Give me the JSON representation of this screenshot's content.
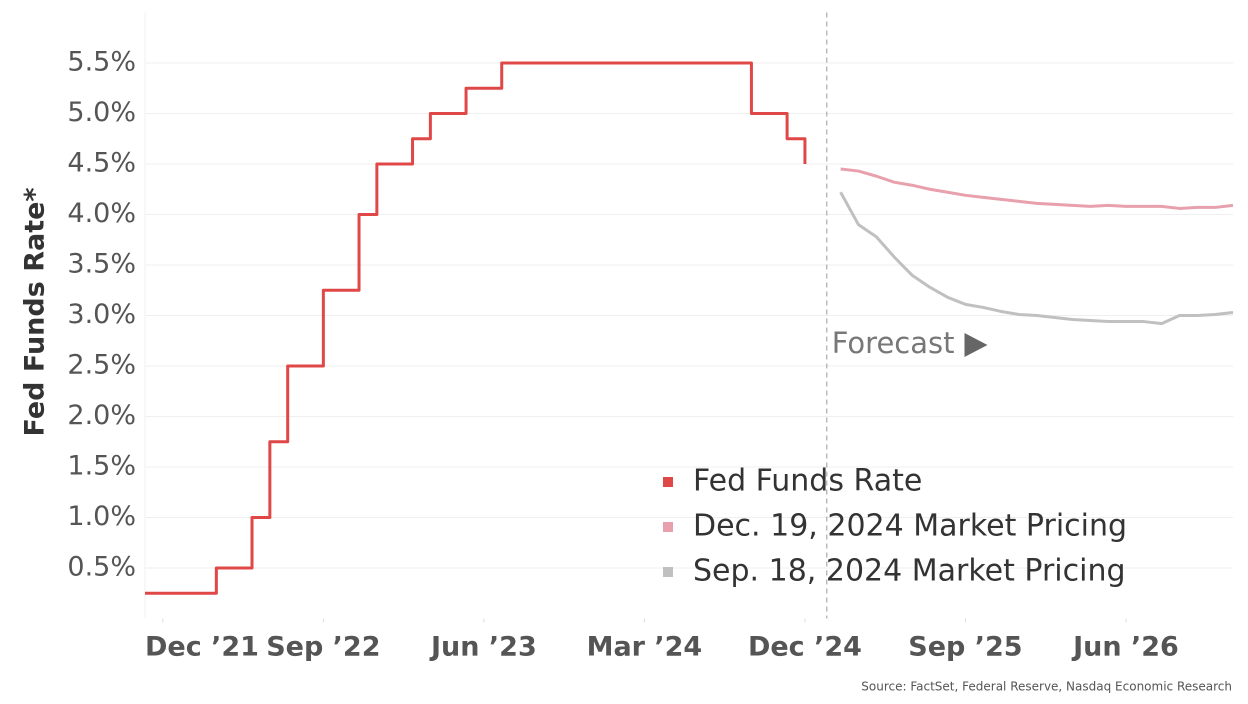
{
  "chart_data": {
    "type": "line",
    "step_series": [
      "Fed Funds Rate"
    ],
    "ylabel": "Fed Funds Rate*",
    "source": "Source: FactSet, Federal Reserve, Nasdaq Economic Research",
    "xlim": [
      "2021-11",
      "2026-12"
    ],
    "xticks": [
      {
        "value": "2021-12",
        "label": "Dec ’21"
      },
      {
        "value": "2022-09",
        "label": "Sep ’22"
      },
      {
        "value": "2023-06",
        "label": "Jun ’23"
      },
      {
        "value": "2024-03",
        "label": "Mar ’24"
      },
      {
        "value": "2024-12",
        "label": "Dec ’24"
      },
      {
        "value": "2025-09",
        "label": "Sep ’25"
      },
      {
        "value": "2026-06",
        "label": "Jun ’26"
      }
    ],
    "ylim": [
      0,
      6
    ],
    "yticks": [
      {
        "value": 0.5,
        "label": "0.5%"
      },
      {
        "value": 1.0,
        "label": "1.0%"
      },
      {
        "value": 1.5,
        "label": "1.5%"
      },
      {
        "value": 2.0,
        "label": "2.0%"
      },
      {
        "value": 2.5,
        "label": "2.5%"
      },
      {
        "value": 3.0,
        "label": "3.0%"
      },
      {
        "value": 3.5,
        "label": "3.5%"
      },
      {
        "value": 4.0,
        "label": "4.0%"
      },
      {
        "value": 4.5,
        "label": "4.5%"
      },
      {
        "value": 5.0,
        "label": "5.0%"
      },
      {
        "value": 5.5,
        "label": "5.5%"
      }
    ],
    "grid": true,
    "legend": "lower right",
    "annotations": [
      {
        "text": "Forecast",
        "x": "2025-01"
      }
    ],
    "series": [
      {
        "name": "Fed Funds Rate",
        "color": "#e04848",
        "x": [
          "2021-11",
          "2022-03",
          "2022-05",
          "2022-06",
          "2022-07",
          "2022-09",
          "2022-11",
          "2022-12",
          "2023-02",
          "2023-03",
          "2023-05",
          "2023-07",
          "2024-09",
          "2024-11",
          "2024-12"
        ],
        "values": [
          0.25,
          0.5,
          1.0,
          1.75,
          2.5,
          3.25,
          4.0,
          4.5,
          4.75,
          5.0,
          5.25,
          5.5,
          5.0,
          4.75,
          4.5
        ]
      },
      {
        "name": "Dec. 19, 2024 Market Pricing",
        "color": "#e8a0ac",
        "x": [
          "2025-02",
          "2025-03",
          "2025-04",
          "2025-05",
          "2025-06",
          "2025-07",
          "2025-08",
          "2025-09",
          "2025-10",
          "2025-11",
          "2025-12",
          "2026-01",
          "2026-02",
          "2026-03",
          "2026-04",
          "2026-05",
          "2026-06",
          "2026-07",
          "2026-08",
          "2026-09",
          "2026-10",
          "2026-11",
          "2026-12"
        ],
        "values": [
          4.45,
          4.43,
          4.38,
          4.32,
          4.29,
          4.25,
          4.22,
          4.19,
          4.17,
          4.15,
          4.13,
          4.11,
          4.1,
          4.09,
          4.08,
          4.09,
          4.08,
          4.08,
          4.08,
          4.06,
          4.07,
          4.07,
          4.09
        ]
      },
      {
        "name": "Sep. 18, 2024 Market Pricing",
        "color": "#c0c0c0",
        "x": [
          "2025-02",
          "2025-03",
          "2025-04",
          "2025-05",
          "2025-06",
          "2025-07",
          "2025-08",
          "2025-09",
          "2025-10",
          "2025-11",
          "2025-12",
          "2026-01",
          "2026-02",
          "2026-03",
          "2026-04",
          "2026-05",
          "2026-06",
          "2026-07",
          "2026-08",
          "2026-09",
          "2026-10",
          "2026-11",
          "2026-12"
        ],
        "values": [
          4.22,
          3.9,
          3.78,
          3.58,
          3.4,
          3.28,
          3.18,
          3.11,
          3.08,
          3.04,
          3.01,
          3.0,
          2.98,
          2.96,
          2.95,
          2.94,
          2.94,
          2.94,
          2.92,
          3.0,
          3.0,
          3.01,
          3.03
        ]
      }
    ]
  }
}
